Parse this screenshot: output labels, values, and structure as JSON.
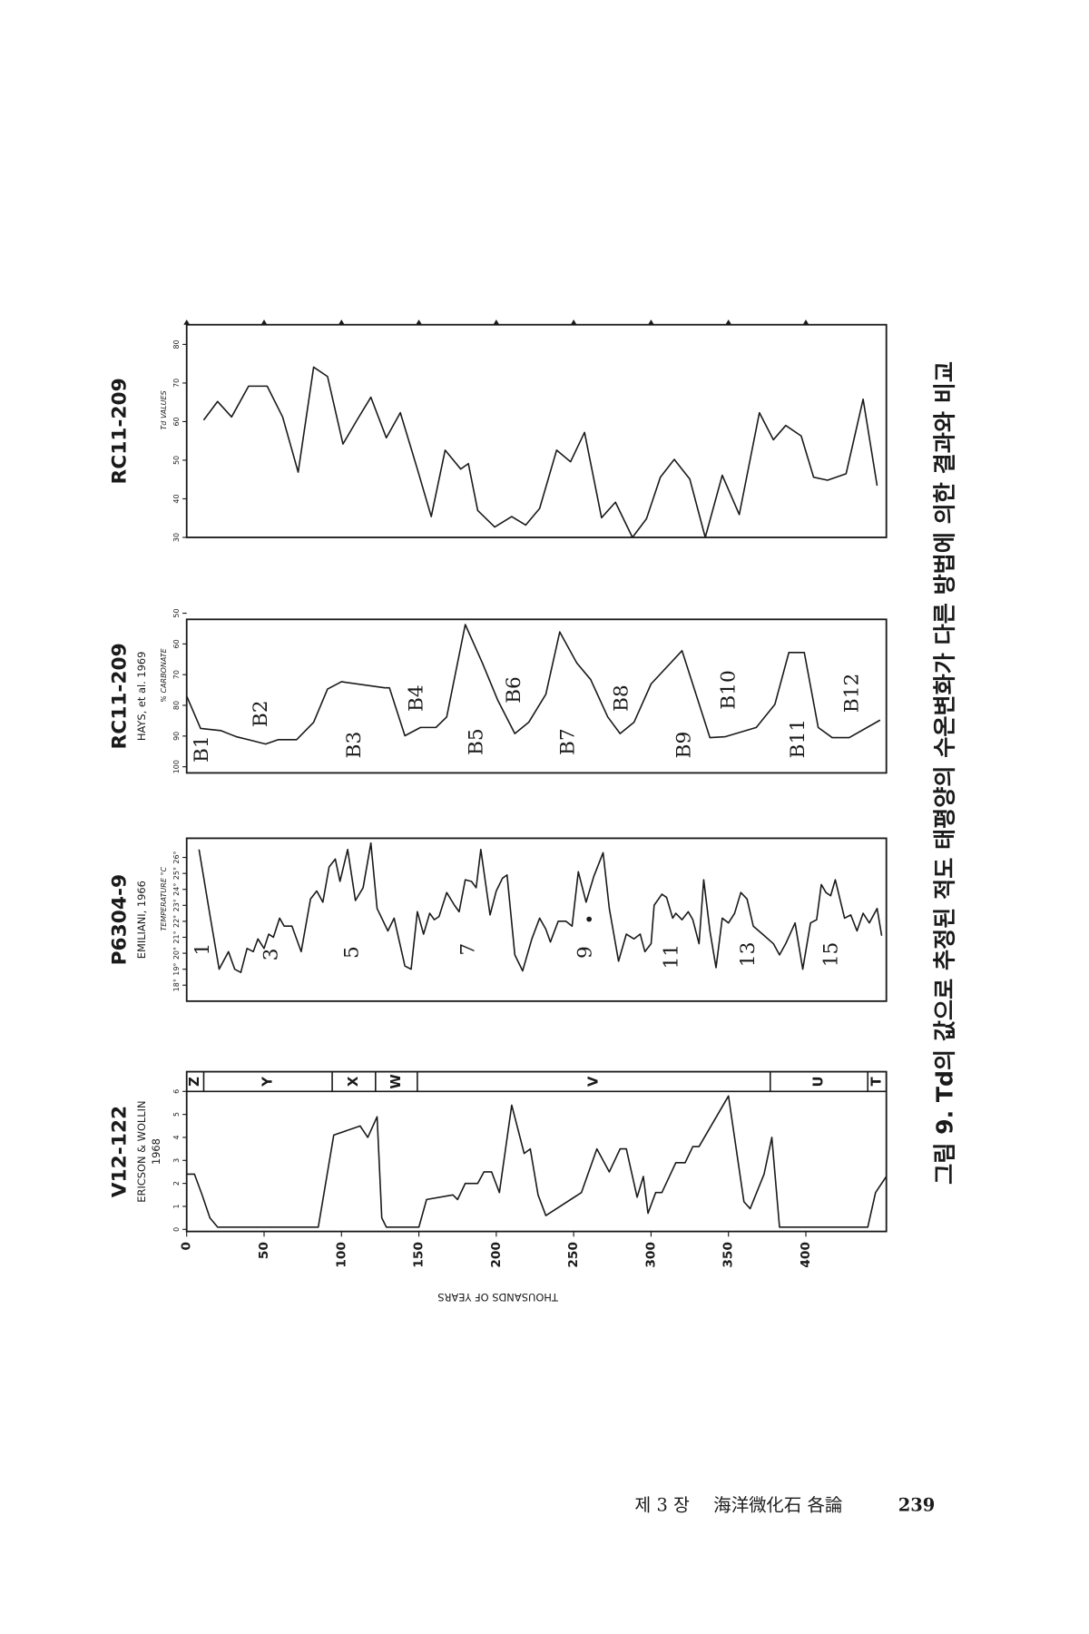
{
  "chart_data": [
    {
      "type": "line",
      "title": "V12-122",
      "subtitle": "ERICSON & WOLLIN",
      "year_note": "1968",
      "x": [
        0,
        5,
        10,
        15,
        20,
        85,
        95,
        112,
        117,
        123,
        126,
        129,
        150,
        155,
        172,
        175,
        180,
        188,
        192,
        197,
        202,
        210,
        218,
        222,
        227,
        232,
        255,
        265,
        273,
        280,
        284,
        291,
        295,
        298,
        303,
        307,
        316,
        322,
        327,
        331,
        350,
        360,
        364,
        373,
        378,
        383,
        440,
        445,
        452
      ],
      "values": [
        2.4,
        2.4,
        1.5,
        0.5,
        0.1,
        0.1,
        4.1,
        4.5,
        4.0,
        4.9,
        0.5,
        0.1,
        0.1,
        1.3,
        1.5,
        1.3,
        2.0,
        2.0,
        2.5,
        2.5,
        1.6,
        5.4,
        3.3,
        3.5,
        1.5,
        0.6,
        1.6,
        3.5,
        2.5,
        3.5,
        3.5,
        1.4,
        2.3,
        0.7,
        1.6,
        1.6,
        2.9,
        2.9,
        3.6,
        3.6,
        5.8,
        1.2,
        0.9,
        2.4,
        4.0,
        0.1,
        0.1,
        1.6,
        2.3
      ],
      "xlim": [
        0,
        452
      ],
      "xticks": [
        0,
        50,
        100,
        150,
        200,
        250,
        300,
        350,
        400
      ],
      "xlabel": "THOUSANDS OF YEARS",
      "ylim": [
        0,
        6
      ],
      "yticks": [
        0,
        1,
        2,
        3,
        4,
        5,
        6
      ],
      "color": "#1a1a1a",
      "zones": [
        {
          "label": "Z",
          "start": 0,
          "end": 11
        },
        {
          "label": "Y",
          "start": 11,
          "end": 94
        },
        {
          "label": "X",
          "start": 94,
          "end": 122
        },
        {
          "label": "W",
          "start": 122,
          "end": 149
        },
        {
          "label": "V",
          "start": 149,
          "end": 377
        },
        {
          "label": "U",
          "start": 377,
          "end": 440
        },
        {
          "label": "T",
          "start": 440,
          "end": 452
        }
      ]
    },
    {
      "type": "line",
      "title": "P6304-9",
      "subtitle": "EMILIANI, 1966",
      "ylabel": "TEMPERATURE °C",
      "x": [
        8,
        15,
        21,
        27,
        31,
        35,
        39,
        43,
        46,
        50,
        53,
        56,
        60,
        63,
        68,
        74,
        80,
        84,
        88,
        92,
        96,
        99,
        104,
        109,
        114,
        119,
        123,
        130,
        134,
        137,
        141,
        145,
        149,
        153,
        157,
        160,
        163,
        168,
        173,
        176,
        180,
        184,
        187,
        190,
        196,
        200,
        204,
        207,
        212,
        217,
        223,
        228,
        232,
        235,
        240,
        245,
        249,
        253,
        258,
        263,
        269,
        273,
        279,
        284,
        289,
        293,
        296,
        300,
        302,
        307,
        310,
        314,
        316,
        320,
        324,
        327,
        331,
        334,
        338,
        342,
        346,
        350,
        354,
        358,
        362,
        366,
        372,
        379,
        383,
        387,
        393,
        398,
        403,
        407,
        410,
        413,
        416,
        419,
        425,
        429,
        433,
        437,
        441,
        446,
        449
      ],
      "values": [
        26.5,
        22.4,
        19.0,
        20.1,
        19.0,
        18.8,
        20.3,
        20.1,
        20.9,
        20.3,
        21.2,
        21.0,
        22.2,
        21.7,
        21.7,
        20.1,
        23.4,
        23.9,
        23.2,
        25.4,
        25.9,
        24.5,
        26.5,
        23.3,
        24.1,
        26.9,
        22.8,
        21.4,
        22.2,
        20.9,
        19.2,
        19.0,
        22.6,
        21.2,
        22.5,
        22.1,
        22.3,
        23.8,
        23.0,
        22.6,
        24.6,
        24.5,
        24.1,
        26.5,
        22.4,
        23.9,
        24.7,
        24.9,
        19.9,
        18.9,
        20.9,
        22.2,
        21.5,
        20.7,
        22.0,
        22.0,
        21.7,
        25.1,
        23.2,
        24.8,
        26.3,
        22.8,
        19.5,
        21.2,
        20.9,
        21.2,
        20.1,
        20.6,
        23.0,
        23.7,
        23.5,
        22.2,
        22.5,
        22.1,
        22.6,
        22.1,
        20.6,
        24.6,
        21.4,
        19.1,
        22.2,
        21.9,
        22.5,
        23.8,
        23.4,
        21.7,
        21.2,
        20.6,
        19.9,
        20.6,
        21.9,
        19.0,
        21.9,
        22.1,
        24.3,
        23.8,
        23.6,
        24.6,
        22.2,
        22.4,
        21.4,
        22.5,
        21.9,
        22.8,
        21.1
      ],
      "xlim": [
        0,
        452
      ],
      "ylim": [
        17,
        27.2
      ],
      "color": "#1a1a1a",
      "yticks": [
        {
          "value": 18,
          "label": "18°"
        },
        {
          "value": 19,
          "label": "19°"
        },
        {
          "value": 20,
          "label": "20°"
        },
        {
          "value": 21,
          "label": "21°"
        },
        {
          "value": 22,
          "label": "22°"
        },
        {
          "value": 23,
          "label": "23°"
        },
        {
          "value": 24,
          "label": "24°"
        },
        {
          "value": 25,
          "label": "25°"
        },
        {
          "value": 26,
          "label": "26°"
        }
      ],
      "annotations": [
        "1",
        "3",
        "5",
        "7",
        "9",
        "11",
        "13",
        "15"
      ]
    },
    {
      "type": "line",
      "title": "RC11-209",
      "subtitle": "HAYS, et al. 1969",
      "ylabel": "% CARBONATE",
      "x": [
        0,
        9,
        22,
        32,
        40,
        51,
        59,
        71,
        82,
        91,
        100,
        128,
        131,
        141,
        151,
        161,
        168,
        180,
        191,
        201,
        212,
        221,
        232,
        241,
        252,
        261,
        272,
        280,
        289,
        300,
        320,
        338,
        348,
        368,
        380,
        389,
        399,
        408,
        417,
        428,
        448
      ],
      "values": [
        77.0,
        87.5,
        88.2,
        90.2,
        91.2,
        92.6,
        91.2,
        91.2,
        85.5,
        74.7,
        72.3,
        74.3,
        74.3,
        89.9,
        87.2,
        87.2,
        83.8,
        53.7,
        66.2,
        78.4,
        89.2,
        85.5,
        76.4,
        56.1,
        66.2,
        71.6,
        83.8,
        89.2,
        85.5,
        73.0,
        62.2,
        90.5,
        90.2,
        87.2,
        79.7,
        62.8,
        62.8,
        87.2,
        90.5,
        90.5,
        84.8
      ],
      "xlim": [
        0,
        452
      ],
      "ylim": [
        102,
        52
      ],
      "yticks": [
        100,
        90,
        80,
        70,
        60,
        50
      ],
      "color": "#1a1a1a",
      "annotations": [
        "B1",
        "B2",
        "B3",
        "B4",
        "B5",
        "B6",
        "B7",
        "B8",
        "B9",
        "B10",
        "B11",
        "B12"
      ]
    },
    {
      "type": "line",
      "title": "RC11-209",
      "ylabel": "Td VALUES",
      "x": [
        11,
        20,
        29,
        40,
        52,
        62,
        72,
        82,
        91,
        101,
        110,
        119,
        129,
        138,
        149,
        158,
        167,
        177,
        182,
        188,
        199,
        210,
        219,
        228,
        239,
        248,
        257,
        268,
        277,
        288,
        297,
        306,
        315,
        325,
        335,
        346,
        357,
        370,
        379,
        387,
        397,
        405,
        414,
        426,
        437,
        446
      ],
      "values": [
        60.4,
        65.2,
        61.2,
        69.2,
        69.2,
        61.2,
        46.9,
        74.1,
        71.7,
        54.2,
        60.4,
        66.3,
        55.8,
        62.3,
        47.7,
        35.4,
        52.6,
        47.7,
        49.1,
        37.0,
        32.7,
        35.4,
        33.2,
        37.5,
        52.6,
        49.6,
        57.2,
        35.1,
        39.1,
        30,
        34.8,
        45.6,
        50.2,
        45.1,
        30,
        46.1,
        35.9,
        62.3,
        55.3,
        59.0,
        56.3,
        45.6,
        44.8,
        46.5,
        65.8,
        43.4
      ],
      "xlim": [
        0,
        452
      ],
      "ylim": [
        30,
        85.1
      ],
      "yticks": [
        30,
        40,
        50,
        60,
        70,
        80
      ],
      "color": "#1a1a1a"
    }
  ],
  "caption": "그림 9. Td의 값으로 추정된 적도 태평양의 수온변화가 다른 방법에 의한 결과와 비교",
  "footer": {
    "chapter": "제 3 장",
    "section": "海洋微化石 各論",
    "page": 239
  }
}
